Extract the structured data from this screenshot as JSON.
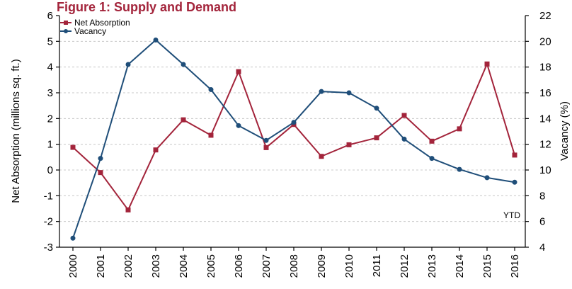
{
  "chart_data": {
    "type": "line",
    "title": "Figure 1: Supply and Demand",
    "categories": [
      "2000",
      "2001",
      "2002",
      "2003",
      "2004",
      "2005",
      "2006",
      "2007",
      "2008",
      "2009",
      "2010",
      "2011",
      "2012",
      "2013",
      "2014",
      "2015",
      "2016"
    ],
    "series": [
      {
        "name": "Net Absorption",
        "axis": "left",
        "color": "#a3243b",
        "marker": "square",
        "values": [
          0.88,
          -0.1,
          -1.55,
          0.78,
          1.95,
          1.35,
          3.82,
          0.87,
          1.77,
          0.53,
          0.98,
          1.25,
          2.12,
          1.12,
          1.6,
          4.12,
          0.58
        ]
      },
      {
        "name": "Vacancy",
        "axis": "right",
        "color": "#1f4e79",
        "marker": "circle",
        "values": [
          4.7,
          10.9,
          18.2,
          20.1,
          18.2,
          16.25,
          13.45,
          12.3,
          13.7,
          16.1,
          16.0,
          14.8,
          12.4,
          10.9,
          10.05,
          9.4,
          9.05
        ]
      }
    ],
    "ylabel": "Net Absorption (millions sq. ft.)",
    "ylim": [
      -3,
      6
    ],
    "yticks": [
      "-3",
      "-2",
      "-1",
      "0",
      "1",
      "2",
      "3",
      "4",
      "5",
      "6"
    ],
    "y2label": "Vacancy (%)",
    "y2lim": [
      4,
      22
    ],
    "y2ticks": [
      "4",
      "6",
      "8",
      "10",
      "12",
      "14",
      "16",
      "18",
      "20",
      "22"
    ],
    "grid": true,
    "legend": "top-left",
    "annotation": "YTD"
  }
}
